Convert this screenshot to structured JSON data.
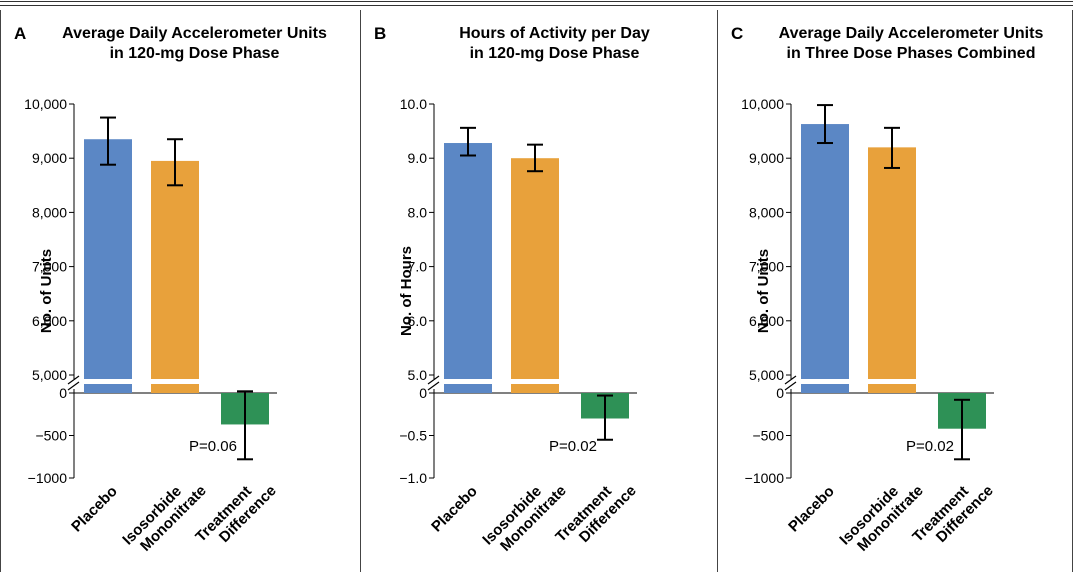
{
  "colors": {
    "placebo": "#5b87c5",
    "isosorbide": "#e8a13b",
    "difference": "#2e9156"
  },
  "chart_data": [
    {
      "type": "bar",
      "panel_letter": "A",
      "title_line1": "Average Daily Accelerometer Units",
      "title_line2": "in 120-mg Dose Phase",
      "ylabel": "No. of Units",
      "upper_ticks": [
        "5,000",
        "6,000",
        "7,000",
        "8,000",
        "9,000",
        "10,000"
      ],
      "upper_tick_values": [
        5000,
        6000,
        7000,
        8000,
        9000,
        10000
      ],
      "upper_ylim": [
        5000,
        10000
      ],
      "lower_ticks": [
        "0",
        "−500",
        "−1000"
      ],
      "lower_tick_values": [
        0,
        -500,
        -1000
      ],
      "lower_ylim": [
        -1000,
        0
      ],
      "categories": [
        [
          "Placebo"
        ],
        [
          "Isosorbide",
          "Mononitrate"
        ],
        [
          "Treatment",
          "Difference"
        ]
      ],
      "bars": [
        {
          "value": 9350,
          "ci": [
            8880,
            9750
          ]
        },
        {
          "value": 8950,
          "ci": [
            8500,
            9350
          ]
        }
      ],
      "difference": {
        "value": -370,
        "ci": [
          -780,
          20
        ]
      },
      "p_value": "P=0.06"
    },
    {
      "type": "bar",
      "panel_letter": "B",
      "title_line1": "Hours of Activity per Day",
      "title_line2": "in 120-mg Dose Phase",
      "ylabel": "No. of Hours",
      "upper_ticks": [
        "5.0",
        "6.0",
        "7.0",
        "8.0",
        "9.0",
        "10.0"
      ],
      "upper_tick_values": [
        5,
        6,
        7,
        8,
        9,
        10
      ],
      "upper_ylim": [
        5,
        10
      ],
      "lower_ticks": [
        "0",
        "−0.5",
        "−1.0"
      ],
      "lower_tick_values": [
        0,
        -0.5,
        -1.0
      ],
      "lower_ylim": [
        -1,
        0
      ],
      "categories": [
        [
          "Placebo"
        ],
        [
          "Isosorbide",
          "Mononitrate"
        ],
        [
          "Treatment",
          "Difference"
        ]
      ],
      "bars": [
        {
          "value": 9.28,
          "ci": [
            9.05,
            9.56
          ]
        },
        {
          "value": 9.0,
          "ci": [
            8.76,
            9.25
          ]
        }
      ],
      "difference": {
        "value": -0.3,
        "ci": [
          -0.55,
          -0.03
        ]
      },
      "p_value": "P=0.02"
    },
    {
      "type": "bar",
      "panel_letter": "C",
      "title_line1": "Average Daily Accelerometer Units",
      "title_line2": "in Three Dose Phases Combined",
      "ylabel": "No. of Units",
      "upper_ticks": [
        "5,000",
        "6,000",
        "7,000",
        "8,000",
        "9,000",
        "10,000"
      ],
      "upper_tick_values": [
        5000,
        6000,
        7000,
        8000,
        9000,
        10000
      ],
      "upper_ylim": [
        5000,
        10000
      ],
      "lower_ticks": [
        "0",
        "−500",
        "−1000"
      ],
      "lower_tick_values": [
        0,
        -500,
        -1000
      ],
      "lower_ylim": [
        -1000,
        0
      ],
      "categories": [
        [
          "Placebo"
        ],
        [
          "Isosorbide",
          "Mononitrate"
        ],
        [
          "Treatment",
          "Difference"
        ]
      ],
      "bars": [
        {
          "value": 9630,
          "ci": [
            9280,
            9980
          ]
        },
        {
          "value": 9200,
          "ci": [
            8820,
            9560
          ]
        }
      ],
      "difference": {
        "value": -420,
        "ci": [
          -780,
          -80
        ]
      },
      "p_value": "P=0.02"
    }
  ]
}
